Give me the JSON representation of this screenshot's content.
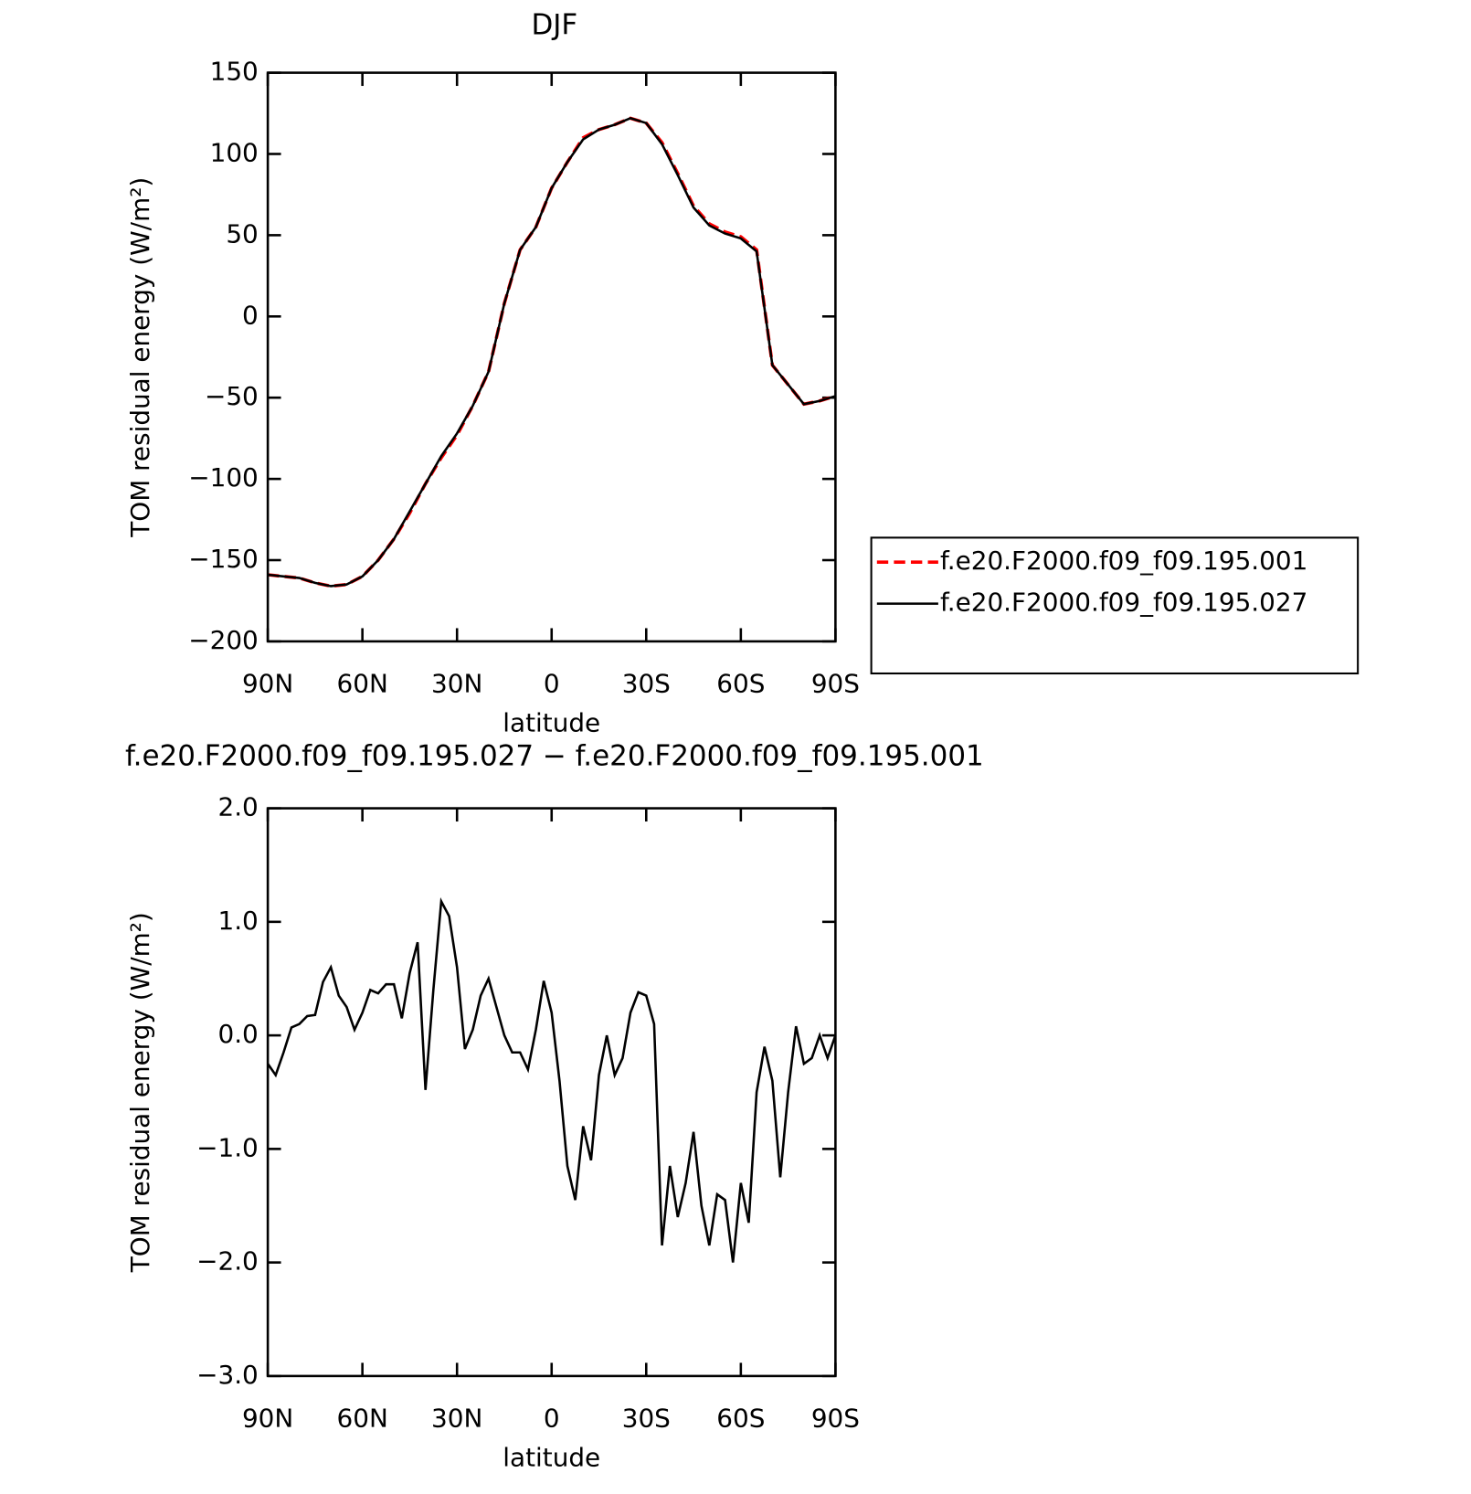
{
  "chart_data": [
    {
      "type": "line",
      "title": "DJF",
      "x_label": "latitude",
      "y_label": "TOM residual energy (W/m²)",
      "xlim": [
        90,
        -90
      ],
      "xticks": [
        {
          "value": 90,
          "label": "90N"
        },
        {
          "value": 60,
          "label": "60N"
        },
        {
          "value": 30,
          "label": "30N"
        },
        0,
        {
          "value": -30,
          "label": "30S"
        },
        {
          "value": -60,
          "label": "60S"
        },
        {
          "value": -90,
          "label": "90S"
        }
      ],
      "ylim": [
        -200,
        150
      ],
      "yticks": [
        {
          "value": -200,
          "label": "−200"
        },
        {
          "value": -150,
          "label": "−150"
        },
        {
          "value": -100,
          "label": "−100"
        },
        {
          "value": -50,
          "label": "−50"
        },
        0,
        50,
        100,
        150
      ],
      "legend": "right",
      "x": [
        90,
        85,
        80,
        75,
        70,
        65,
        60,
        55,
        50,
        45,
        40,
        35,
        30,
        25,
        20,
        15,
        10,
        5,
        0,
        -5,
        -10,
        -15,
        -20,
        -25,
        -30,
        -35,
        -40,
        -45,
        -50,
        -55,
        -60,
        -65,
        -70,
        -75,
        -80,
        -85,
        -90
      ],
      "series": [
        {
          "name": "f.e20.F2000.f09_f09.195.001",
          "color": "#ff0000",
          "dash": true,
          "values": [
            -159,
            -160,
            -161,
            -164,
            -166,
            -165,
            -160,
            -150,
            -137,
            -121,
            -103,
            -87,
            -73,
            -55,
            -34,
            8,
            41,
            55,
            79,
            95,
            110,
            115,
            118,
            122,
            119,
            107,
            88,
            68,
            57,
            52,
            49,
            41,
            -30,
            -42,
            -54,
            -52,
            -49
          ]
        },
        {
          "name": "f.e20.F2000.f09_f09.195.027",
          "color": "#000000",
          "dash": false,
          "values": [
            -159,
            -160,
            -161,
            -164,
            -166,
            -165,
            -160,
            -150,
            -137,
            -120,
            -103,
            -86,
            -72,
            -55,
            -34,
            8,
            41,
            55,
            79,
            95,
            109,
            115,
            118,
            122,
            119,
            106,
            87,
            67,
            56,
            51,
            48,
            40,
            -30,
            -42,
            -54,
            -52,
            -49
          ]
        }
      ]
    },
    {
      "type": "line",
      "title": "f.e20.F2000.f09_f09.195.027 − f.e20.F2000.f09_f09.195.001",
      "x_label": "latitude",
      "y_label": "TOM residual energy (W/m²)",
      "xlim": [
        90,
        -90
      ],
      "xticks": [
        {
          "value": 90,
          "label": "90N"
        },
        {
          "value": 60,
          "label": "60N"
        },
        {
          "value": 30,
          "label": "30N"
        },
        0,
        {
          "value": -30,
          "label": "30S"
        },
        {
          "value": -60,
          "label": "60S"
        },
        {
          "value": -90,
          "label": "90S"
        }
      ],
      "ylim": [
        -3,
        2
      ],
      "yticks": [
        {
          "value": -3,
          "label": "−3.0"
        },
        {
          "value": -2,
          "label": "−2.0"
        },
        {
          "value": -1,
          "label": "−1.0"
        },
        {
          "value": 0,
          "label": "0.0"
        },
        {
          "value": 1,
          "label": "1.0"
        },
        {
          "value": 2,
          "label": "2.0"
        }
      ],
      "x": [
        90,
        87.5,
        85,
        82.5,
        80,
        77.5,
        75,
        72.5,
        70,
        67.5,
        65,
        62.5,
        60,
        57.5,
        55,
        52.5,
        50,
        47.5,
        45,
        42.5,
        40,
        37.5,
        35,
        32.5,
        30,
        27.5,
        25,
        22.5,
        20,
        17.5,
        15,
        12.5,
        10,
        7.5,
        5,
        2.5,
        0,
        -2.5,
        -5,
        -7.5,
        -10,
        -12.5,
        -15,
        -17.5,
        -20,
        -22.5,
        -25,
        -27.5,
        -30,
        -32.5,
        -35,
        -37.5,
        -40,
        -42.5,
        -45,
        -47.5,
        -50,
        -52.5,
        -55,
        -57.5,
        -60,
        -62.5,
        -65,
        -67.5,
        -70,
        -72.5,
        -75,
        -77.5,
        -80,
        -82.5,
        -85,
        -87.5,
        -90
      ],
      "series": [
        {
          "color": "#000000",
          "values": [
            -0.25,
            -0.35,
            -0.15,
            0.07,
            0.1,
            0.17,
            0.18,
            0.47,
            0.6,
            0.35,
            0.25,
            0.05,
            0.2,
            0.4,
            0.37,
            0.45,
            0.45,
            0.15,
            0.55,
            0.82,
            -0.48,
            0.4,
            1.18,
            1.05,
            0.6,
            -0.12,
            0.05,
            0.35,
            0.5,
            0.25,
            0.0,
            -0.15,
            -0.15,
            -0.3,
            0.05,
            0.48,
            0.2,
            -0.4,
            -1.15,
            -1.45,
            -0.8,
            -1.1,
            -0.35,
            0.0,
            -0.35,
            -0.2,
            0.2,
            0.38,
            0.35,
            0.1,
            -1.85,
            -1.15,
            -1.6,
            -1.3,
            -0.85,
            -1.5,
            -1.85,
            -1.4,
            -1.45,
            -2.0,
            -1.3,
            -1.65,
            -0.5,
            -0.1,
            -0.4,
            -1.25,
            -0.5,
            0.08,
            -0.25,
            -0.2,
            0.0,
            -0.2,
            0.0
          ]
        }
      ]
    }
  ]
}
